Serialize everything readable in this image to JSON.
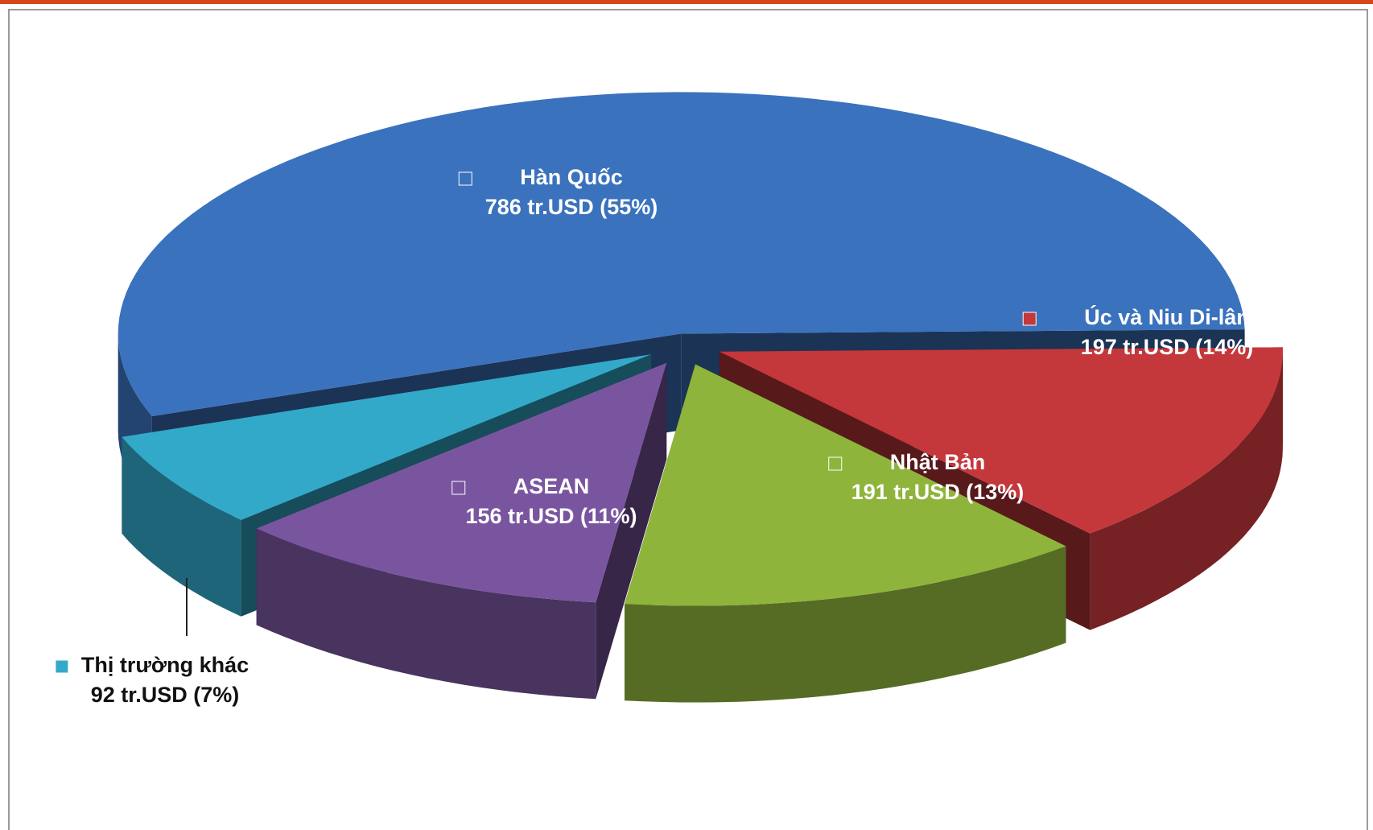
{
  "chart_data": {
    "type": "pie",
    "categories": [
      "Hàn Quốc",
      "Úc và Niu Di-lân",
      "Nhật Bản",
      "ASEAN",
      "Thị trường khác"
    ],
    "values": [
      786,
      197,
      191,
      156,
      92
    ],
    "value_labels": [
      "786 tr.USD (55%)",
      "197 tr.USD (14%)",
      "191 tr.USD (13%)",
      "156 tr.USD (11%)",
      "92 tr.USD (7%)"
    ],
    "colors": [
      "#3b72bd",
      "#c4373b",
      "#8fb43c",
      "#7a559f",
      "#33a9c9"
    ]
  }
}
